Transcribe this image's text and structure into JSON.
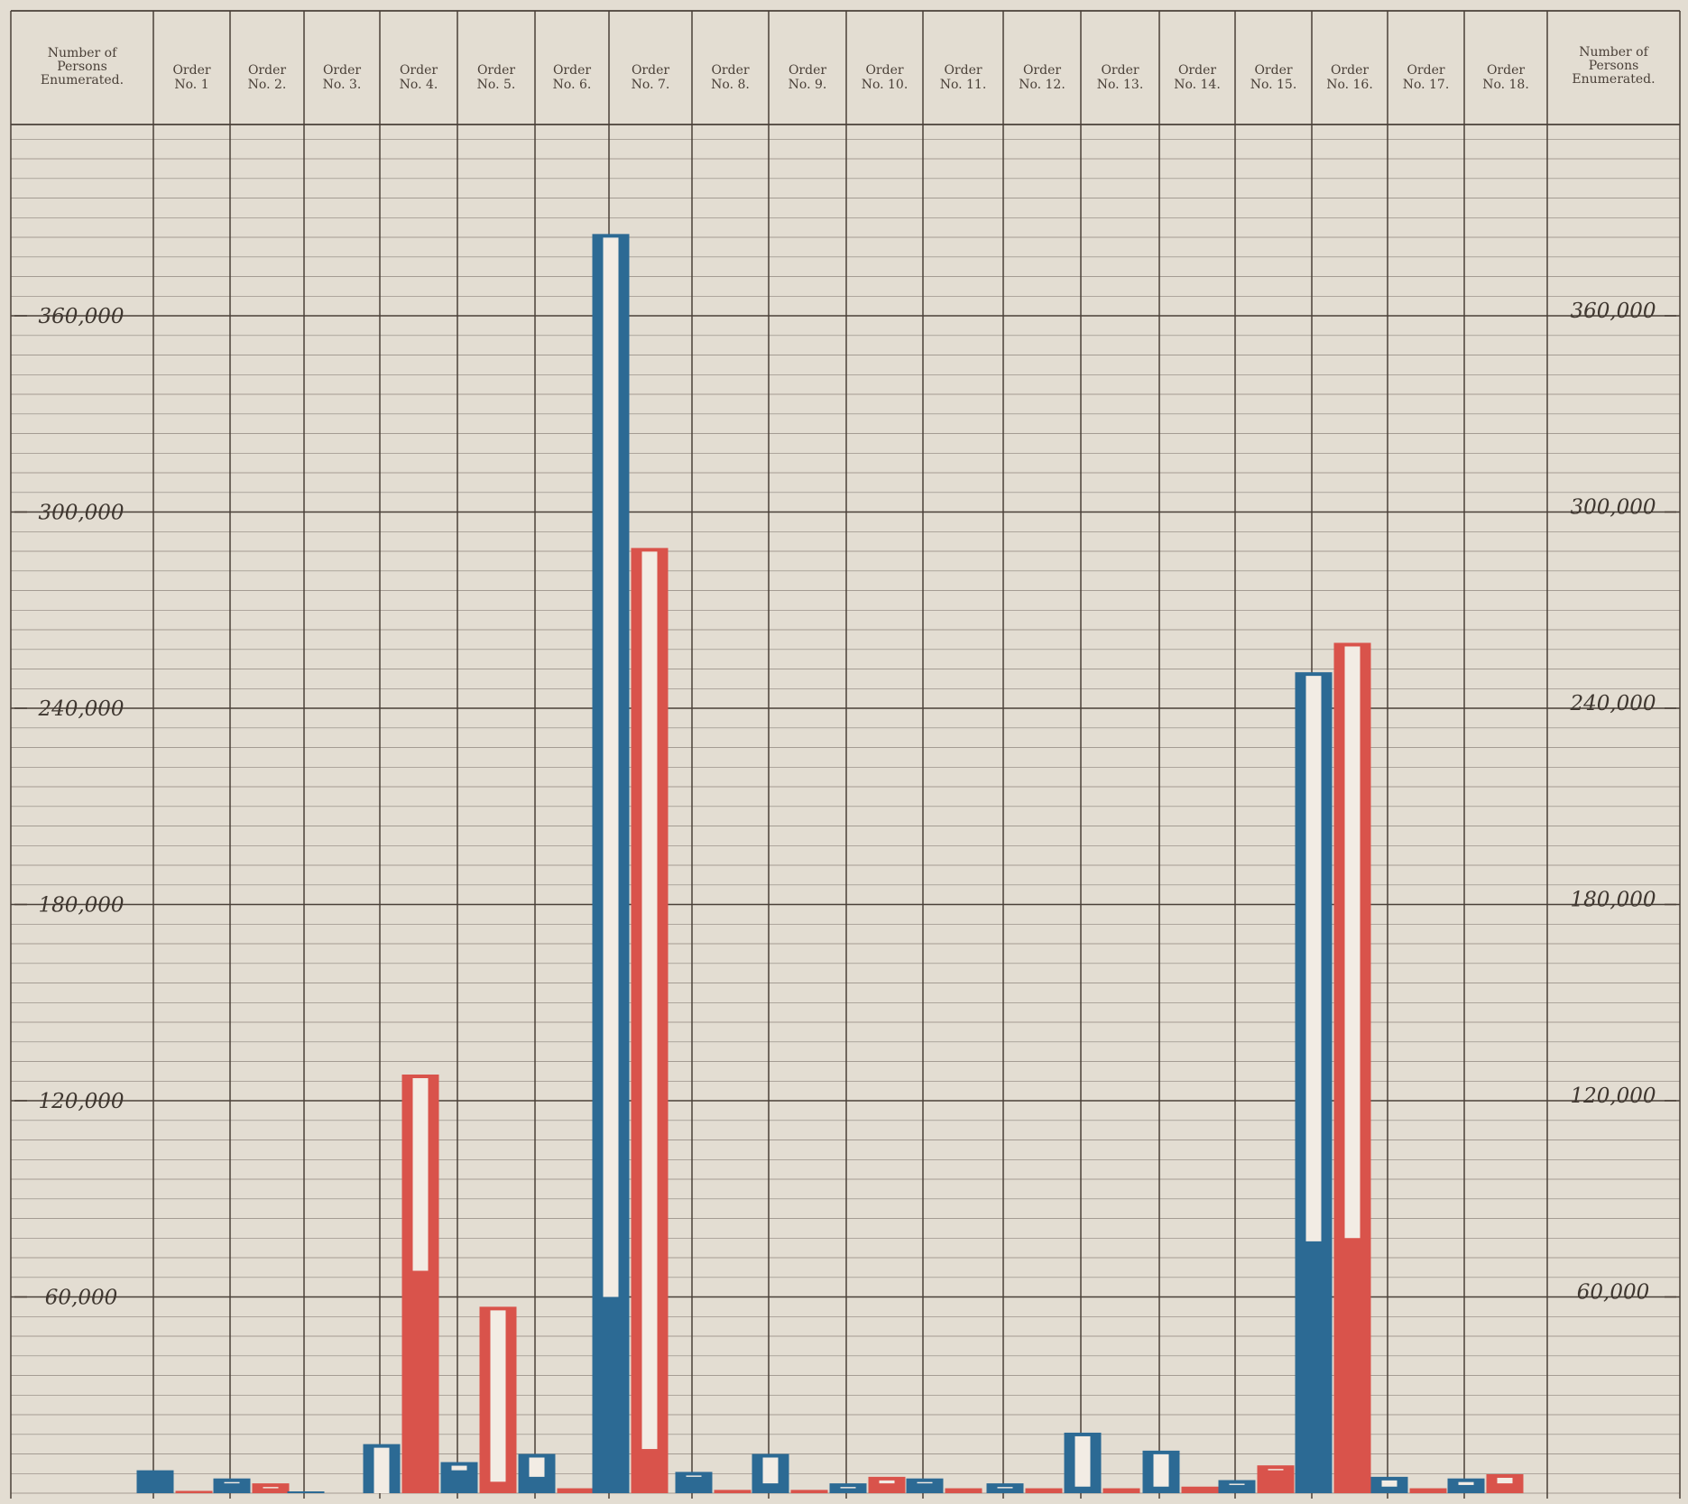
{
  "chart_data": {
    "type": "bar",
    "title": "",
    "axis_label_left": [
      "Number of",
      "Persons",
      "Enumerated."
    ],
    "axis_label_right": [
      "Number of",
      "Persons",
      "Enumerated."
    ],
    "categories": [
      [
        "Order",
        "No. 1"
      ],
      [
        "Order",
        "No. 2."
      ],
      [
        "Order",
        "No. 3."
      ],
      [
        "Order",
        "No. 4."
      ],
      [
        "Order",
        "No. 5."
      ],
      [
        "Order",
        "No. 6."
      ],
      [
        "Order",
        "No. 7."
      ],
      [
        "Order",
        "No. 8."
      ],
      [
        "Order",
        "No. 9."
      ],
      [
        "Order",
        "No. 10."
      ],
      [
        "Order",
        "No. 11."
      ],
      [
        "Order",
        "No. 12."
      ],
      [
        "Order",
        "No. 13."
      ],
      [
        "Order",
        "No. 14."
      ],
      [
        "Order",
        "No. 15."
      ],
      [
        "Order",
        "No. 16."
      ],
      [
        "Order",
        "No. 17."
      ],
      [
        "Order",
        "No. 18."
      ]
    ],
    "ylim": [
      0,
      380000
    ],
    "yticks_left": [
      "360,000",
      "300,000",
      "240,000",
      "180,000",
      "120,000",
      "60,000"
    ],
    "yticks_right": [
      "360,000",
      "300,000",
      "240,000",
      "180,000",
      "120,000",
      "60,000"
    ],
    "ytick_values": [
      360000,
      300000,
      240000,
      180000,
      120000,
      60000
    ],
    "colors": {
      "blue": "#2c6a94",
      "red": "#d9534b",
      "grid": "#4a4038",
      "background": "#e3ddd2"
    },
    "series": [
      {
        "color": "blue",
        "totals": [
          7000,
          4500,
          500,
          15000,
          9500,
          12000,
          385000,
          6500,
          12000,
          3000,
          4500,
          3000,
          18500,
          13000,
          4000,
          251000,
          5000,
          4500
        ],
        "solid_portions": [
          6500,
          3000,
          500,
          0,
          7000,
          5000,
          60000,
          5000,
          3000,
          1500,
          3000,
          1500,
          2000,
          2000,
          2500,
          77000,
          2000,
          2500
        ]
      },
      {
        "color": "red",
        "totals": [
          700,
          3000,
          0,
          128000,
          57000,
          1500,
          289000,
          1000,
          1000,
          5000,
          1500,
          1500,
          1500,
          2000,
          8500,
          260000,
          1500,
          5800
        ],
        "solid_portions": [
          700,
          1500,
          0,
          68000,
          3500,
          1500,
          13500,
          1000,
          1000,
          3000,
          1500,
          1500,
          1500,
          2000,
          7000,
          78000,
          1500,
          3000
        ]
      }
    ]
  }
}
